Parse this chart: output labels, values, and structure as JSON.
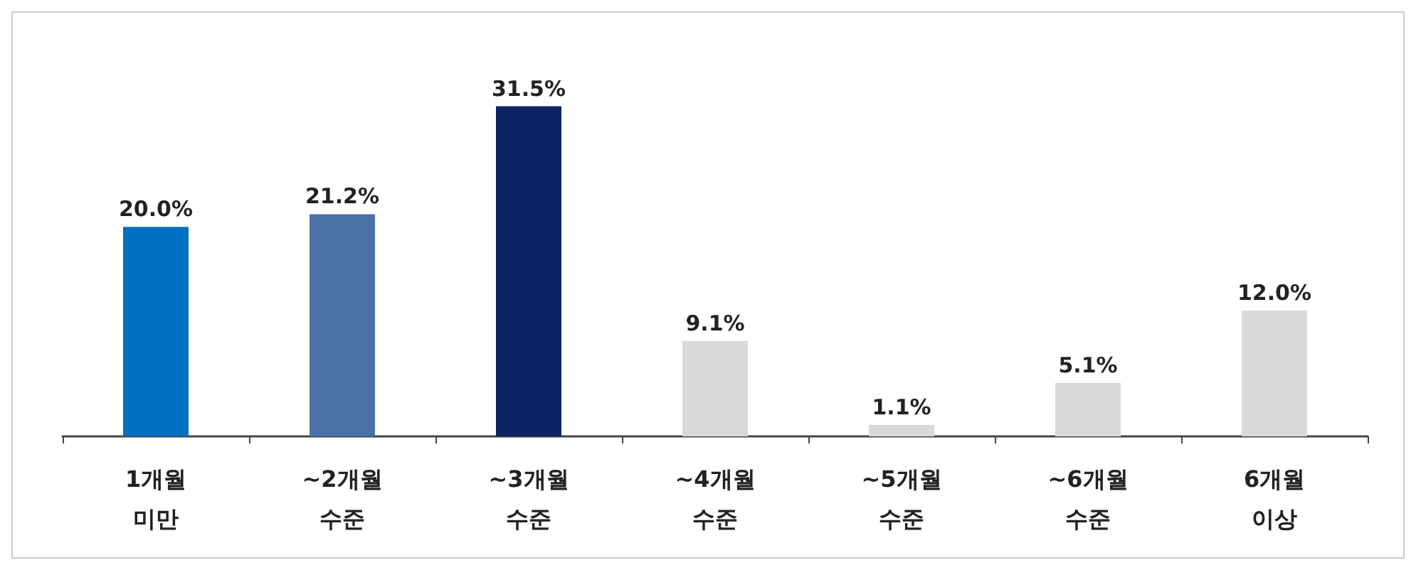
{
  "chart_data": {
    "type": "bar",
    "categories": [
      "1개월\n미만",
      "~2개월\n수준",
      "~3개월\n수준",
      "~4개월\n수준",
      "~5개월\n수준",
      "~6개월\n수준",
      "6개월\n이상"
    ],
    "values": [
      20.0,
      21.2,
      31.5,
      9.1,
      1.1,
      5.1,
      12.0
    ],
    "colors": [
      "#0070c0",
      "#4a72a8",
      "#0c2461",
      "#d9d9d9",
      "#d9d9d9",
      "#d9d9d9",
      "#d9d9d9"
    ],
    "value_labels": [
      "20.0%",
      "21.2%",
      "31.5%",
      "9.1%",
      "1.1%",
      "5.1%",
      "12.0%"
    ]
  }
}
